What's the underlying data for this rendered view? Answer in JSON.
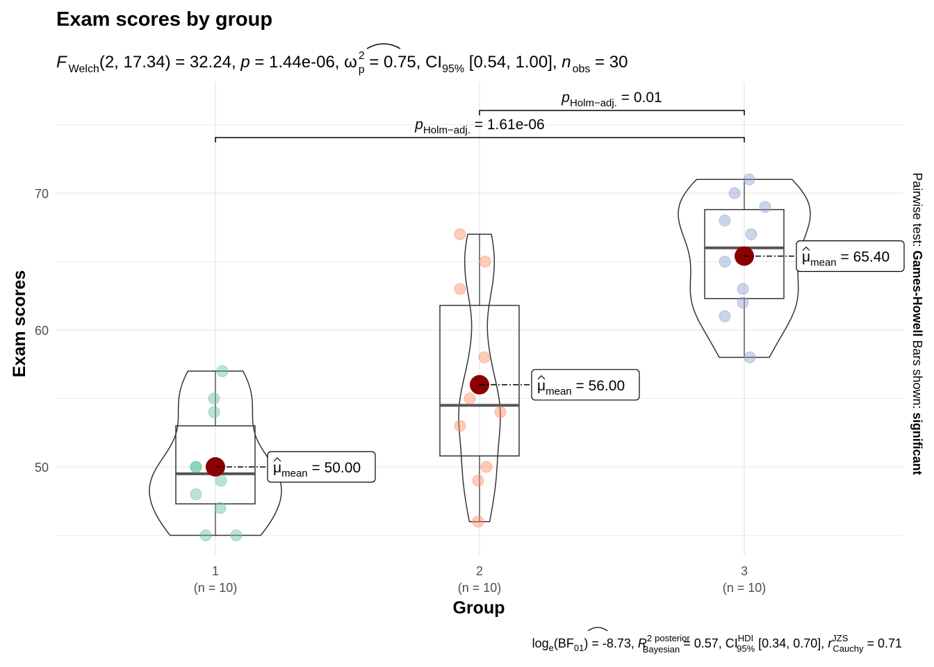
{
  "chart_data": {
    "type": "violin-box-scatter",
    "title": "Exam scores by group",
    "subtitle": {
      "F": "F",
      "F_sub": "Welch",
      "stat": "(2, 17.34) = 32.24, ",
      "p": "p",
      "p_val": " = 1.44e-06, ",
      "omega": "ω",
      "omega_sup": "2",
      "omega_sub": "p",
      "omega_val": " = 0.75, CI",
      "ci_sub": "95%",
      "ci_val": " [0.54, 1.00], ",
      "n": "n",
      "n_sub": "obs",
      "n_val": " = 30"
    },
    "xlabel": "Group",
    "ylabel": "Exam scores",
    "ylim": [
      44.3,
      76
    ],
    "y_ticks": [
      "50",
      "60",
      "70"
    ],
    "groups": [
      {
        "name": "1",
        "n_label": "(n = 10)",
        "color": "#66c2a5",
        "points": [
          57,
          55,
          54,
          50,
          49,
          48,
          47,
          45,
          45,
          50
        ],
        "mean": 50.0,
        "mean_label": "50.00",
        "box": {
          "q1": 47.3,
          "median": 49.5,
          "q3": 53.0,
          "min": 45,
          "max": 57
        }
      },
      {
        "name": "2",
        "n_label": "(n = 10)",
        "color": "#fc8d62",
        "points": [
          67,
          65,
          63,
          58,
          55,
          54,
          53,
          50,
          49,
          46
        ],
        "mean": 56.0,
        "mean_label": "56.00",
        "box": {
          "q1": 50.8,
          "median": 54.5,
          "q3": 61.8,
          "min": 46,
          "max": 67
        }
      },
      {
        "name": "3",
        "n_label": "(n = 10)",
        "color": "#8da0cb",
        "points": [
          71,
          70,
          69,
          68,
          67,
          63,
          62,
          61,
          58,
          65
        ],
        "mean": 65.4,
        "mean_label": "65.40",
        "box": {
          "q1": 62.3,
          "median": 66.0,
          "q3": 68.8,
          "min": 58,
          "max": 71
        }
      }
    ],
    "mean_label_prefix": "μ",
    "mean_label_sub": "mean",
    "comparisons": [
      {
        "from": "1",
        "to": "3",
        "p_sym": "p",
        "p_sub": "Holm−adj.",
        "p_val": " = 1.61e-06"
      },
      {
        "from": "2",
        "to": "3",
        "p_sym": "p",
        "p_sub": "Holm−adj.",
        "p_val": " = 0.01"
      }
    ],
    "side_label": {
      "normal1": "Pairwise test: ",
      "bold1": "Games-Howell",
      "normal2": " Bars shown: ",
      "bold2": "significant"
    },
    "caption": {
      "log": "log",
      "log_sub": "e",
      "bf": "(BF",
      "bf_sub": "01",
      "bf_val": ") = -8.73, ",
      "R": "R",
      "R_sup": "2",
      "R_sup2": "posterior",
      "R_sub": "Bayesian",
      "R_val": " = 0.57, CI",
      "ci_sup": "HDI",
      "ci_sub": "95%",
      "ci_val": " [0.34, 0.70], ",
      "r": "r",
      "r_sup": "JZS",
      "r_sub": "Cauchy",
      "r_val": " = 0.71"
    },
    "colors": {
      "mean_point": "#8b0000",
      "grid": "#ebebeb",
      "box": "#333333"
    },
    "grid": true
  }
}
